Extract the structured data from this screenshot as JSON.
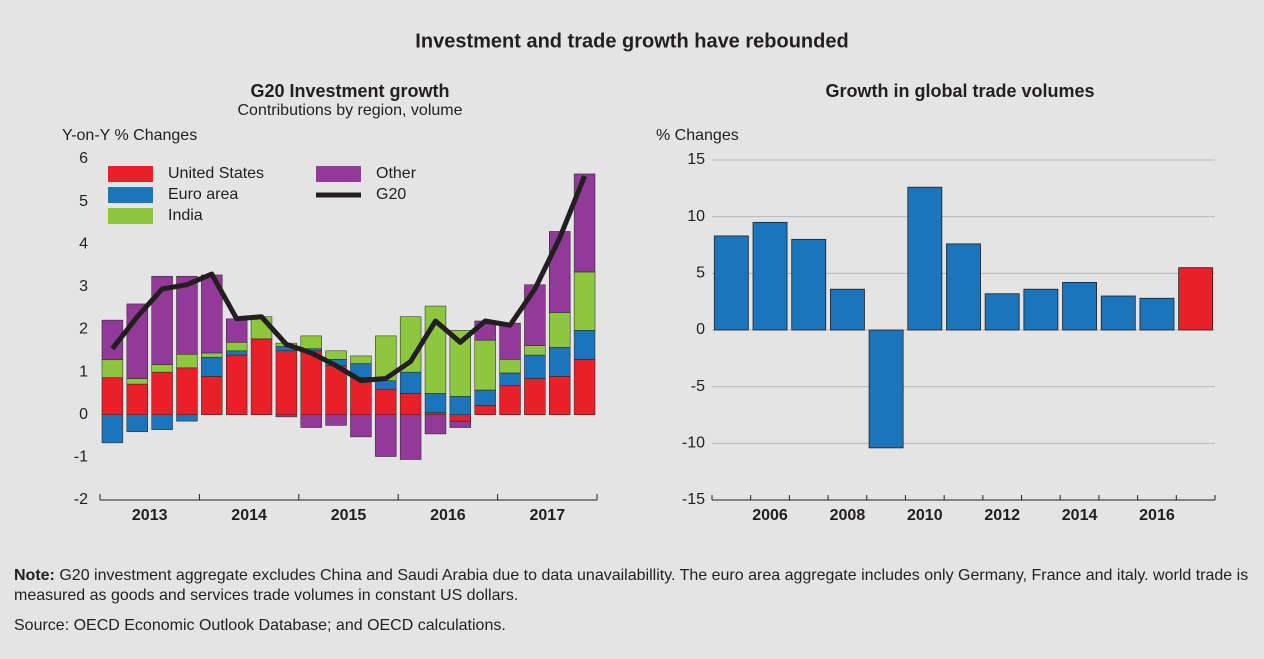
{
  "title": "Investment and trade growth have rebounded",
  "chart_data": [
    {
      "type": "stacked-bar",
      "title": "G20 Investment growth",
      "subtitle": "Contributions by region, volume",
      "y_label": "Y-on-Y % Changes",
      "categories": [
        null,
        null,
        null,
        null,
        null,
        null,
        null,
        null,
        null,
        null,
        null,
        null,
        null,
        null,
        null,
        null,
        null,
        null,
        null,
        null
      ],
      "group_labels": [
        "2013",
        "2014",
        "2015",
        "2016",
        "2017"
      ],
      "ylim": [
        -2,
        6
      ],
      "yticks": [
        -2,
        -1,
        0,
        1,
        2,
        3,
        4,
        5,
        6
      ],
      "grid": false,
      "series": [
        {
          "name": "United States",
          "color": "#e8202a",
          "values": [
            0.87,
            0.72,
            1.0,
            1.1,
            0.9,
            1.4,
            1.78,
            1.5,
            1.5,
            1.15,
            0.88,
            0.6,
            0.5,
            0.05,
            -0.15,
            0.22,
            0.68,
            0.85,
            0.9,
            1.3
          ]
        },
        {
          "name": "Euro area",
          "color": "#1b75bb",
          "values": [
            -0.66,
            -0.4,
            -0.35,
            -0.15,
            0.45,
            0.1,
            0,
            0.1,
            0.05,
            0.15,
            0.32,
            0.2,
            0.5,
            0.45,
            0.43,
            0.36,
            0.3,
            0.55,
            0.68,
            0.68
          ]
        },
        {
          "name": "India",
          "color": "#8dc63f",
          "values": [
            0.42,
            0.13,
            0.18,
            0.32,
            0.1,
            0.2,
            0.52,
            0.08,
            0.3,
            0.2,
            0.18,
            1.05,
            1.3,
            2.05,
            1.55,
            1.17,
            0.32,
            0.22,
            0.82,
            1.37
          ]
        },
        {
          "name": "Other",
          "color": "#93399a",
          "values": [
            0.93,
            1.75,
            2.07,
            1.83,
            1.83,
            0.55,
            0,
            -0.05,
            -0.3,
            -0.25,
            -0.52,
            -0.98,
            -1.05,
            -0.45,
            -0.15,
            0.45,
            0.85,
            1.43,
            1.9,
            2.3
          ]
        },
        {
          "name": "G20",
          "color": "#231f20",
          "type": "line",
          "values": [
            1.55,
            2.3,
            2.95,
            3.05,
            3.3,
            2.25,
            2.3,
            1.65,
            1.45,
            1.15,
            0.8,
            0.85,
            1.25,
            2.2,
            1.7,
            2.2,
            2.1,
            2.95,
            4.15,
            5.6
          ]
        }
      ]
    },
    {
      "type": "bar",
      "title": "Growth in global trade volumes",
      "y_label": "% Changes",
      "categories": [
        null,
        "2006",
        null,
        "2008",
        null,
        "2010",
        null,
        "2012",
        null,
        "2014",
        null,
        "2016",
        null
      ],
      "values": [
        8.3,
        9.5,
        8.0,
        3.6,
        -10.4,
        12.6,
        7.6,
        3.2,
        3.6,
        4.2,
        3.0,
        2.8,
        5.5
      ],
      "colors": [
        "#1b75bb",
        "#1b75bb",
        "#1b75bb",
        "#1b75bb",
        "#1b75bb",
        "#1b75bb",
        "#1b75bb",
        "#1b75bb",
        "#1b75bb",
        "#1b75bb",
        "#1b75bb",
        "#1b75bb",
        "#e8202a"
      ],
      "ylim": [
        -15,
        15
      ],
      "yticks": [
        -15,
        -10,
        -5,
        0,
        5,
        10,
        15
      ],
      "grid": true
    }
  ],
  "note": {
    "label": "Note:",
    "text": "G20 investment aggregate excludes China and Saudi Arabia due to data unavailabillity. The euro area aggregate includes only Germany, France and italy. world trade is measured as goods and services trade volumes in constant US dollars."
  },
  "source": "Source: OECD Economic Outlook Database; and OECD calculations."
}
